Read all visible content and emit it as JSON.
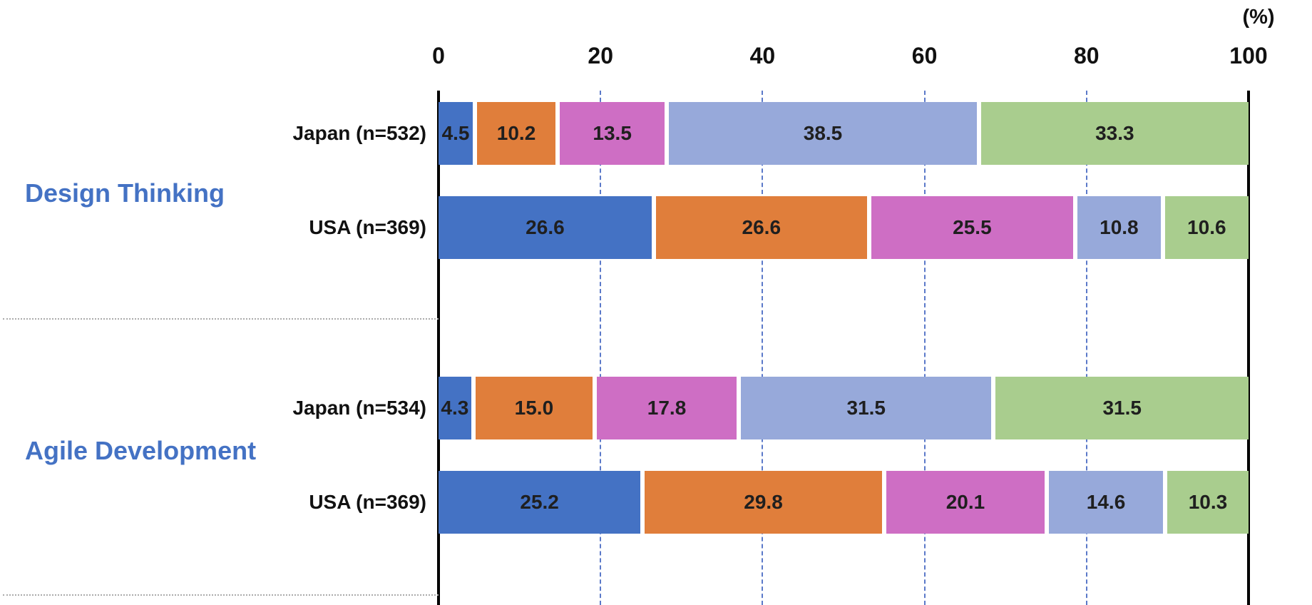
{
  "chart_data": {
    "type": "bar",
    "orientation": "horizontal-stacked",
    "unit_label": "(%)",
    "axis": {
      "min": 0,
      "max": 100,
      "ticks": [
        0,
        20,
        40,
        60,
        80,
        100
      ],
      "gridlines_at": [
        20,
        40,
        60,
        80
      ],
      "gridline_style": "dashed-blue",
      "solid_lines_at": [
        0,
        100
      ]
    },
    "series_colors": [
      "#4472c4",
      "#e07e3b",
      "#ce6ec4",
      "#97a9da",
      "#a9cd8e"
    ],
    "value_decimals": 1,
    "groups": [
      {
        "label": "Design Thinking",
        "rows": [
          {
            "label": "Japan (n=532)",
            "values": [
              4.5,
              10.2,
              13.5,
              38.5,
              33.3
            ]
          },
          {
            "label": "USA (n=369)",
            "values": [
              26.6,
              26.6,
              25.5,
              10.8,
              10.6
            ]
          }
        ]
      },
      {
        "label": "Agile Development",
        "rows": [
          {
            "label": "Japan (n=534)",
            "values": [
              4.3,
              15.0,
              17.8,
              31.5,
              31.5
            ]
          },
          {
            "label": "USA (n=369)",
            "values": [
              25.2,
              29.8,
              20.1,
              14.6,
              10.3
            ]
          }
        ]
      }
    ]
  },
  "colors": {
    "group_label_text": "#4472c4",
    "gridline": "#5b79c9",
    "axis_line": "#000000",
    "separator": "#ababab",
    "tick_text": "#111111",
    "bar_value_text": "#1f1f1f"
  }
}
